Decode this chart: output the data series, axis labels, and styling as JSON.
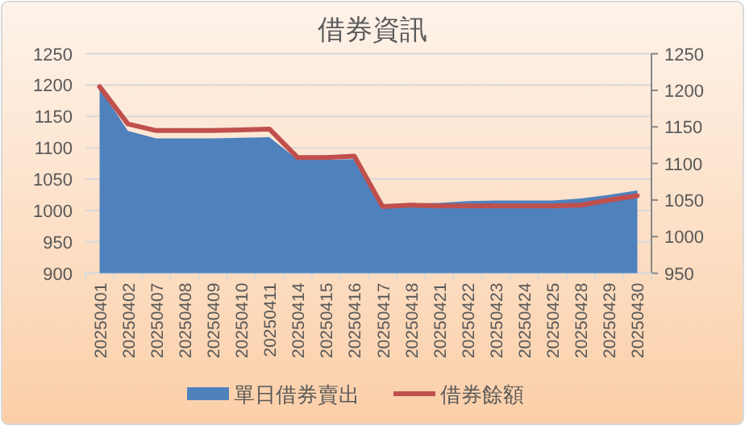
{
  "chart_data": {
    "type": "area",
    "title": "借券資訊",
    "categories": [
      "20250401",
      "20250402",
      "20250407",
      "20250408",
      "20250409",
      "20250410",
      "20250411",
      "20250414",
      "20250415",
      "20250416",
      "20250417",
      "20250418",
      "20250421",
      "20250422",
      "20250423",
      "20250424",
      "20250425",
      "20250428",
      "20250429",
      "20250430"
    ],
    "series": [
      {
        "name": "單日借券賣出",
        "type": "area",
        "color": "#4f81bd",
        "values": [
          1195,
          1127,
          1115,
          1115,
          1115,
          1116,
          1117,
          1081,
          1081,
          1082,
          1009,
          1011,
          1012,
          1015,
          1016,
          1016,
          1016,
          1019,
          1025,
          1032
        ]
      },
      {
        "name": "借券餘額",
        "type": "line",
        "axis": "y2",
        "color": "#c0504d",
        "values": [
          1205,
          1154,
          1145,
          1145,
          1145,
          1146,
          1147,
          1108,
          1108,
          1110,
          1041,
          1043,
          1042,
          1042,
          1042,
          1042,
          1042,
          1043,
          1050,
          1056
        ]
      }
    ],
    "ylim": [
      900,
      1250
    ],
    "yticks": [
      900,
      950,
      1000,
      1050,
      1100,
      1150,
      1200,
      1250
    ],
    "y2lim": [
      950,
      1250
    ],
    "y2ticks": [
      950,
      1000,
      1050,
      1100,
      1150,
      1200,
      1250
    ],
    "grid": "y",
    "legend": "bottom"
  }
}
